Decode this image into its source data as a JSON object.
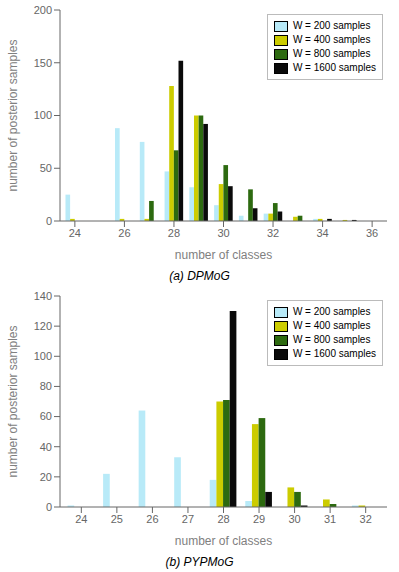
{
  "chart_data": [
    {
      "type": "bar",
      "title": "(a) DPMoG",
      "xlabel": "number of classes",
      "ylabel": "number of posterior samples",
      "x": [
        24,
        25,
        26,
        27,
        28,
        29,
        30,
        31,
        32,
        33,
        34,
        35
      ],
      "xlim": [
        23.4,
        36.6
      ],
      "xticks": [
        24,
        26,
        28,
        30,
        32,
        34,
        36
      ],
      "ylim": [
        0,
        200
      ],
      "yticks": [
        0,
        50,
        100,
        150,
        200
      ],
      "grid": false,
      "legend": "upper right",
      "series": [
        {
          "name": "W = 200 samples",
          "color": "#b8eaf8",
          "values": [
            25,
            0,
            88,
            75,
            47,
            32,
            15,
            5,
            7,
            0,
            2,
            0
          ]
        },
        {
          "name": "W = 400 samples",
          "color": "#cccc00",
          "values": [
            2,
            0,
            2,
            2,
            128,
            100,
            35,
            0,
            7,
            4,
            2,
            1
          ]
        },
        {
          "name": "W = 800 samples",
          "color": "#2d6a10",
          "values": [
            0,
            0,
            0,
            19,
            67,
            100,
            53,
            30,
            17,
            5,
            0,
            0
          ]
        },
        {
          "name": "W = 1600 samples",
          "color": "#0a0a0a",
          "values": [
            0,
            0,
            0,
            0,
            152,
            92,
            33,
            12,
            9,
            0,
            2,
            1
          ]
        }
      ]
    },
    {
      "type": "bar",
      "title": "(b) PYPMoG",
      "xlabel": "number of classes",
      "ylabel": "number of posterior samples",
      "x": [
        24,
        25,
        26,
        27,
        28,
        29,
        30,
        31,
        32
      ],
      "xlim": [
        23.4,
        32.6
      ],
      "xticks": [
        24,
        25,
        26,
        27,
        28,
        29,
        30,
        31,
        32
      ],
      "ylim": [
        0,
        140
      ],
      "yticks": [
        0,
        20,
        40,
        60,
        80,
        100,
        120,
        140
      ],
      "grid": false,
      "legend": "upper right",
      "series": [
        {
          "name": "W = 200 samples",
          "color": "#b8eaf8",
          "values": [
            1,
            22,
            64,
            33,
            18,
            4,
            0,
            0,
            1
          ]
        },
        {
          "name": "W = 400 samples",
          "color": "#cccc00",
          "values": [
            0,
            0,
            0,
            0,
            70,
            55,
            13,
            5,
            1
          ]
        },
        {
          "name": "W = 800 samples",
          "color": "#2d6a10",
          "values": [
            0,
            0,
            0,
            0,
            71,
            59,
            10,
            2,
            0
          ]
        },
        {
          "name": "W = 1600 samples",
          "color": "#0a0a0a",
          "values": [
            0,
            0,
            0,
            0,
            130,
            10,
            1,
            0,
            0
          ]
        }
      ]
    }
  ]
}
